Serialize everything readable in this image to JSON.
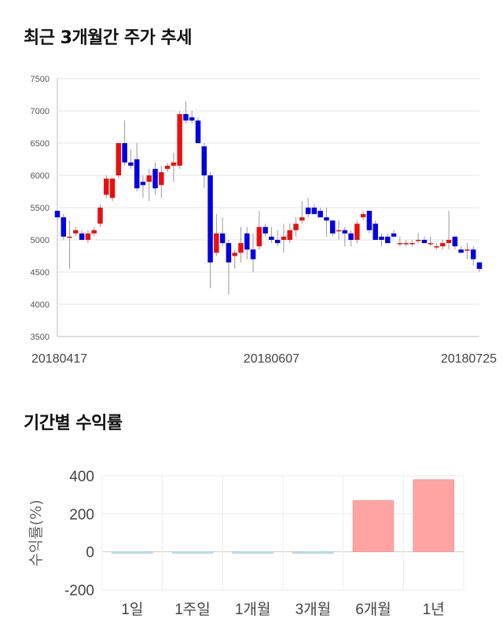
{
  "sections": {
    "price_title": "최근 3개월간 주가 추세",
    "return_title": "기간별 수익률"
  },
  "colors": {
    "up": "#e8100e",
    "down": "#0000e0",
    "wick": "#999999",
    "return_positive": "#ffa3a3",
    "return_negative": "#b8e0ea"
  },
  "chart_data": [
    {
      "type": "candlestick",
      "title": "최근 3개월간 주가 추세",
      "ylim": [
        3500,
        7500
      ],
      "yticks": [
        3500,
        4000,
        4500,
        5000,
        5500,
        6000,
        6500,
        7000,
        7500
      ],
      "xtick_labels": [
        {
          "index": 0,
          "label": "20180417"
        },
        {
          "index": 35,
          "label": "20180607"
        },
        {
          "index": 69,
          "label": "20180725"
        }
      ],
      "grid": true,
      "candles": [
        [
          5450,
          5450,
          5300,
          5350
        ],
        [
          5350,
          5400,
          5000,
          5050
        ],
        [
          5050,
          5300,
          4550,
          5050
        ],
        [
          5100,
          5200,
          5050,
          5150
        ],
        [
          5100,
          5150,
          5000,
          5000
        ],
        [
          5000,
          5150,
          4950,
          5100
        ],
        [
          5100,
          5200,
          5050,
          5150
        ],
        [
          5250,
          5550,
          5200,
          5500
        ],
        [
          5700,
          6000,
          5650,
          5950
        ],
        [
          5650,
          5950,
          5600,
          5950
        ],
        [
          6000,
          6500,
          5950,
          6500
        ],
        [
          6500,
          6850,
          6150,
          6200
        ],
        [
          6200,
          6400,
          6100,
          6150
        ],
        [
          6250,
          6500,
          5750,
          5800
        ],
        [
          5900,
          6000,
          5650,
          5850
        ],
        [
          5900,
          6100,
          5600,
          6000
        ],
        [
          6100,
          6200,
          5700,
          5800
        ],
        [
          5850,
          6150,
          5650,
          6050
        ],
        [
          6100,
          6200,
          6050,
          6150
        ],
        [
          6150,
          6350,
          5900,
          6200
        ],
        [
          6150,
          7000,
          6100,
          6950
        ],
        [
          6950,
          7150,
          6800,
          6850
        ],
        [
          6900,
          7000,
          6800,
          6850
        ],
        [
          6850,
          6900,
          6500,
          6500
        ],
        [
          6450,
          6500,
          5800,
          6000
        ],
        [
          6000,
          6050,
          4250,
          4650
        ],
        [
          4800,
          5400,
          4750,
          5100
        ],
        [
          5100,
          5350,
          4900,
          4950
        ],
        [
          4950,
          5000,
          4150,
          4650
        ],
        [
          4750,
          4850,
          4550,
          4800
        ],
        [
          4800,
          5200,
          4650,
          4950
        ],
        [
          5100,
          5200,
          4700,
          4850
        ],
        [
          4850,
          5100,
          4500,
          4700
        ],
        [
          4900,
          5450,
          4850,
          5200
        ],
        [
          5200,
          5250,
          5050,
          5100
        ],
        [
          5050,
          5200,
          4950,
          5000
        ],
        [
          5000,
          5150,
          4900,
          4950
        ],
        [
          5000,
          5250,
          4800,
          5050
        ],
        [
          5000,
          5250,
          4950,
          5150
        ],
        [
          5150,
          5350,
          5050,
          5250
        ],
        [
          5300,
          5600,
          5250,
          5350
        ],
        [
          5500,
          5650,
          5350,
          5400
        ],
        [
          5500,
          5550,
          5400,
          5400
        ],
        [
          5450,
          5500,
          5350,
          5350
        ],
        [
          5350,
          5500,
          5050,
          5300
        ],
        [
          5300,
          5300,
          5050,
          5100
        ],
        [
          5150,
          5300,
          5000,
          5150
        ],
        [
          5150,
          5200,
          4900,
          5100
        ],
        [
          5100,
          5150,
          4900,
          5000
        ],
        [
          5000,
          5300,
          4950,
          5250
        ],
        [
          5350,
          5450,
          5300,
          5400
        ],
        [
          5450,
          5450,
          5100,
          5150
        ],
        [
          5250,
          5300,
          5000,
          5000
        ],
        [
          5050,
          5100,
          4900,
          5000
        ],
        [
          5050,
          5100,
          4950,
          4950
        ],
        [
          5100,
          5150,
          5050,
          5050
        ],
        [
          4950,
          5050,
          4900,
          4950
        ],
        [
          4950,
          5000,
          4900,
          4950
        ],
        [
          4950,
          5000,
          4900,
          4950
        ],
        [
          5000,
          5100,
          4950,
          5000
        ],
        [
          5000,
          5050,
          4950,
          4950
        ],
        [
          4950,
          5050,
          4900,
          4950
        ],
        [
          4900,
          4950,
          4850,
          4900
        ],
        [
          4900,
          5000,
          4850,
          4950
        ],
        [
          4950,
          5450,
          4850,
          5000
        ],
        [
          5050,
          5050,
          4850,
          4900
        ],
        [
          4850,
          4900,
          4800,
          4800
        ],
        [
          4850,
          4950,
          4700,
          4850
        ],
        [
          4850,
          4900,
          4600,
          4700
        ],
        [
          4650,
          4650,
          4500,
          4550
        ]
      ]
    },
    {
      "type": "bar",
      "categories": [
        "1일",
        "1주일",
        "1개월",
        "3개월",
        "6개월",
        "1년"
      ],
      "values": [
        -1,
        -1,
        -8,
        -2,
        270,
        380
      ],
      "ylabel": "수익률(%)",
      "ylim": [
        -200,
        400
      ],
      "yticks": [
        -200,
        0,
        200,
        400
      ],
      "grid": true
    }
  ]
}
